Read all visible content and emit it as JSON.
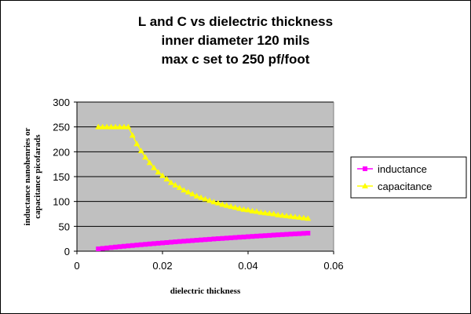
{
  "chart_data": {
    "type": "scatter",
    "title": [
      "L and C vs dielectric thickness",
      "inner diameter 120 mils",
      "max c set to 250 pf/foot"
    ],
    "xlabel": "dielectric thickness",
    "ylabel": [
      "inductance nanohenries or",
      "capacitance picofarads"
    ],
    "xlim": [
      0,
      0.06
    ],
    "ylim": [
      0,
      300
    ],
    "xticks": [
      0,
      0.02,
      0.04,
      0.06
    ],
    "xtick_labels": [
      "0",
      "0.02",
      "0.04",
      "0.06"
    ],
    "yticks": [
      0,
      50,
      100,
      150,
      200,
      250,
      300
    ],
    "ytick_labels": [
      "0",
      "50",
      "100",
      "150",
      "200",
      "250",
      "300"
    ],
    "grid": "horizontal",
    "plot_background": "#c0c0c0",
    "legend_position": "right",
    "series": [
      {
        "name": "inductance",
        "color": "#ff00ff",
        "marker": "square",
        "x": [
          0.005,
          0.006,
          0.007,
          0.008,
          0.009,
          0.01,
          0.011,
          0.012,
          0.013,
          0.014,
          0.015,
          0.016,
          0.017,
          0.018,
          0.019,
          0.02,
          0.021,
          0.022,
          0.023,
          0.024,
          0.025,
          0.026,
          0.027,
          0.028,
          0.029,
          0.03,
          0.031,
          0.032,
          0.033,
          0.034,
          0.035,
          0.036,
          0.037,
          0.038,
          0.039,
          0.04,
          0.041,
          0.042,
          0.043,
          0.044,
          0.045,
          0.046,
          0.047,
          0.048,
          0.049,
          0.05,
          0.051,
          0.052,
          0.053,
          0.054
        ],
        "y": [
          4.7,
          5.6,
          6.5,
          7.4,
          8.3,
          9.1,
          9.9,
          10.7,
          11.5,
          12.3,
          13.1,
          13.8,
          14.6,
          15.3,
          16.0,
          16.7,
          17.4,
          18.1,
          18.8,
          19.5,
          20.1,
          20.8,
          21.4,
          22.1,
          22.7,
          23.3,
          23.9,
          24.6,
          25.2,
          25.7,
          26.3,
          26.9,
          27.5,
          28.1,
          28.6,
          29.2,
          29.7,
          30.3,
          30.8,
          31.3,
          31.8,
          32.4,
          32.9,
          33.4,
          33.9,
          34.4,
          34.9,
          35.3,
          35.8,
          36.3
        ]
      },
      {
        "name": "capacitance",
        "color": "#ffff00",
        "marker": "triangle",
        "x": [
          0.005,
          0.006,
          0.007,
          0.008,
          0.009,
          0.01,
          0.011,
          0.012,
          0.013,
          0.014,
          0.015,
          0.016,
          0.017,
          0.018,
          0.019,
          0.02,
          0.021,
          0.022,
          0.023,
          0.024,
          0.025,
          0.026,
          0.027,
          0.028,
          0.029,
          0.03,
          0.031,
          0.032,
          0.033,
          0.034,
          0.035,
          0.036,
          0.037,
          0.038,
          0.039,
          0.04,
          0.041,
          0.042,
          0.043,
          0.044,
          0.045,
          0.046,
          0.047,
          0.048,
          0.049,
          0.05,
          0.051,
          0.052,
          0.053,
          0.054
        ],
        "y": [
          250,
          250,
          250,
          250,
          250,
          250,
          250,
          250,
          233,
          216,
          202,
          189,
          178,
          168,
          159,
          152,
          145,
          138,
          133,
          128,
          123,
          119,
          115,
          111,
          108,
          105,
          102,
          99,
          97,
          94,
          92,
          90,
          88,
          86,
          84,
          83,
          81,
          80,
          78,
          77,
          76,
          75,
          73,
          72,
          71,
          70,
          69,
          68,
          67,
          66
        ]
      }
    ]
  }
}
